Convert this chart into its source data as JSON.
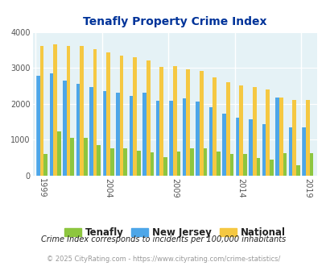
{
  "title": "Tenafly Property Crime Index",
  "subtitle": "Crime Index corresponds to incidents per 100,000 inhabitants",
  "footer": "© 2025 CityRating.com - https://www.cityrating.com/crime-statistics/",
  "years": [
    1999,
    2000,
    2001,
    2002,
    2003,
    2004,
    2005,
    2006,
    2007,
    2008,
    2009,
    2010,
    2011,
    2012,
    2013,
    2014,
    2015,
    2016,
    2017,
    2018,
    2019
  ],
  "tenafly": [
    600,
    1220,
    1040,
    1040,
    850,
    760,
    760,
    700,
    650,
    510,
    670,
    760,
    760,
    660,
    610,
    600,
    490,
    450,
    630,
    290,
    630
  ],
  "new_jersey": [
    2780,
    2840,
    2650,
    2550,
    2470,
    2350,
    2310,
    2210,
    2300,
    2080,
    2080,
    2160,
    2060,
    1910,
    1720,
    1620,
    1560,
    1430,
    2170,
    1350,
    1350
  ],
  "national": [
    3620,
    3660,
    3620,
    3600,
    3510,
    3430,
    3340,
    3290,
    3210,
    3030,
    3050,
    2950,
    2920,
    2740,
    2600,
    2500,
    2460,
    2390,
    2170,
    2100,
    2100
  ],
  "tenafly_color": "#8dc63f",
  "nj_color": "#4da6e8",
  "national_color": "#f5c842",
  "bg_color": "#e5f2f6",
  "title_color": "#003399",
  "subtitle_color": "#222222",
  "footer_color": "#999999",
  "ylim": [
    0,
    4000
  ],
  "yticks": [
    0,
    1000,
    2000,
    3000,
    4000
  ],
  "bar_width": 0.28,
  "x_tick_years": [
    1999,
    2004,
    2009,
    2014,
    2019
  ]
}
